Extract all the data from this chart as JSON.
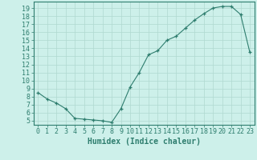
{
  "x": [
    0,
    1,
    2,
    3,
    4,
    5,
    6,
    7,
    8,
    9,
    10,
    11,
    12,
    13,
    14,
    15,
    16,
    17,
    18,
    19,
    20,
    21,
    22,
    23
  ],
  "y": [
    8.5,
    7.7,
    7.2,
    6.5,
    5.3,
    5.2,
    5.1,
    5.0,
    4.8,
    6.5,
    9.2,
    11.0,
    13.2,
    13.7,
    15.0,
    15.5,
    16.5,
    17.5,
    18.3,
    19.0,
    19.2,
    19.2,
    18.2,
    13.5
  ],
  "line_color": "#2e7d6e",
  "marker": "+",
  "marker_color": "#2e7d6e",
  "bg_color": "#cdf0ea",
  "grid_color": "#b0d8d0",
  "axis_color": "#2e7d6e",
  "xlabel": "Humidex (Indice chaleur)",
  "xlim": [
    -0.5,
    23.5
  ],
  "ylim": [
    4.5,
    19.8
  ],
  "xticks": [
    0,
    1,
    2,
    3,
    4,
    5,
    6,
    7,
    8,
    9,
    10,
    11,
    12,
    13,
    14,
    15,
    16,
    17,
    18,
    19,
    20,
    21,
    22,
    23
  ],
  "yticks": [
    5,
    6,
    7,
    8,
    9,
    10,
    11,
    12,
    13,
    14,
    15,
    16,
    17,
    18,
    19
  ],
  "xlabel_fontsize": 7.0,
  "tick_fontsize": 6.0
}
